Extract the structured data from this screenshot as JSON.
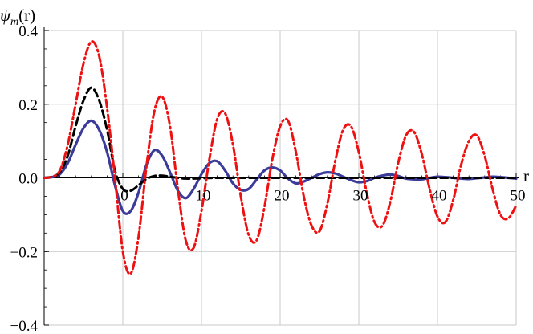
{
  "chart_data": {
    "type": "line",
    "title": "",
    "xlabel": "r",
    "ylabel": "ψm(r)",
    "ylabel_parts": {
      "main": "ψ",
      "sub": "m",
      "tail": "(r)"
    },
    "xlim": [
      -10,
      50
    ],
    "ylim": [
      -0.4,
      0.4
    ],
    "x_ticks": [
      0,
      10,
      20,
      30,
      40,
      50
    ],
    "x_tick_labels": [
      "0",
      "10",
      "20",
      "30",
      "40",
      "50"
    ],
    "y_ticks": [
      -0.4,
      -0.2,
      0.0,
      0.2,
      0.4
    ],
    "y_tick_labels": [
      "−0.4",
      "−0.2",
      "0.0",
      "0.2",
      "0.4"
    ],
    "grid": true,
    "legend": "none",
    "series": [
      {
        "color": "#3b3b9a",
        "style": "solid",
        "x": [
          -10,
          -9,
          -8,
          -7,
          -6,
          -5,
          -4,
          -3,
          -2,
          -1,
          0,
          1,
          2,
          3,
          4,
          5,
          6,
          7,
          8,
          9,
          10,
          11,
          12,
          13,
          14,
          15,
          16,
          17,
          18,
          19,
          20,
          21,
          22,
          23,
          24,
          25,
          26,
          27,
          28,
          29,
          30,
          31,
          32,
          33,
          34,
          35,
          36,
          37,
          38,
          39,
          40,
          41,
          42,
          43,
          44,
          45,
          46,
          47,
          48,
          49,
          50
        ],
        "y": [
          0,
          0.002,
          0.01,
          0.04,
          0.09,
          0.135,
          0.155,
          0.13,
          0.07,
          -0.02,
          -0.09,
          -0.09,
          -0.04,
          0.035,
          0.075,
          0.06,
          0.015,
          -0.035,
          -0.055,
          -0.03,
          0.01,
          0.04,
          0.045,
          0.02,
          -0.015,
          -0.033,
          -0.03,
          -0.005,
          0.02,
          0.028,
          0.02,
          -0.002,
          -0.015,
          -0.01,
          0.0,
          0.01,
          0.015,
          0.012,
          0.003,
          -0.006,
          -0.012,
          -0.009,
          0.0,
          0.006,
          0.009,
          0.005,
          -0.002,
          -0.004,
          -0.004,
          0.0,
          0.003,
          0.002,
          0.0,
          -0.002,
          -0.003,
          -0.001,
          0.001,
          0.003,
          0.002,
          0.0,
          -0.002
        ]
      },
      {
        "color": "#000000",
        "style": "dashed",
        "x": [
          -10,
          -9,
          -8,
          -7,
          -6,
          -5,
          -4,
          -3,
          -2,
          -1,
          0,
          1,
          2,
          3,
          4,
          5,
          6,
          7,
          8,
          9,
          10,
          12,
          14,
          16,
          18,
          20,
          25,
          30,
          35,
          40,
          45,
          50
        ],
        "y": [
          0,
          0.003,
          0.015,
          0.06,
          0.14,
          0.21,
          0.245,
          0.21,
          0.13,
          0.02,
          -0.03,
          -0.035,
          -0.02,
          -0.003,
          0.005,
          0.006,
          0.003,
          0.0,
          -0.002,
          -0.002,
          -0.001,
          0,
          0,
          0,
          0,
          0,
          0,
          0,
          0,
          0,
          0,
          0
        ]
      },
      {
        "color": "#ee1111",
        "style": "dashdot",
        "x": [
          -10,
          -9,
          -8,
          -7,
          -6,
          -5,
          -4,
          -3,
          -2,
          -1,
          0,
          1,
          2,
          3,
          4,
          5,
          6,
          7,
          8,
          9,
          10,
          11,
          12,
          13,
          14,
          15,
          16,
          17,
          18,
          19,
          20,
          21,
          22,
          23,
          24,
          25,
          26,
          27,
          28,
          29,
          30,
          31,
          32,
          33,
          34,
          35,
          36,
          37,
          38,
          39,
          40,
          41,
          42,
          43,
          44,
          45,
          46,
          47,
          48,
          49,
          50
        ],
        "y": [
          0,
          0.003,
          0.02,
          0.09,
          0.2,
          0.31,
          0.37,
          0.33,
          0.19,
          0.0,
          -0.2,
          -0.26,
          -0.16,
          0.03,
          0.18,
          0.22,
          0.14,
          -0.03,
          -0.17,
          -0.19,
          -0.09,
          0.05,
          0.16,
          0.175,
          0.09,
          -0.05,
          -0.155,
          -0.17,
          -0.08,
          0.05,
          0.14,
          0.155,
          0.07,
          -0.05,
          -0.13,
          -0.145,
          -0.07,
          0.045,
          0.13,
          0.14,
          0.07,
          -0.04,
          -0.12,
          -0.13,
          -0.065,
          0.04,
          0.115,
          0.125,
          0.065,
          -0.03,
          -0.105,
          -0.12,
          -0.06,
          0.035,
          0.1,
          0.115,
          0.06,
          -0.03,
          -0.1,
          -0.11,
          -0.075
        ]
      }
    ]
  }
}
